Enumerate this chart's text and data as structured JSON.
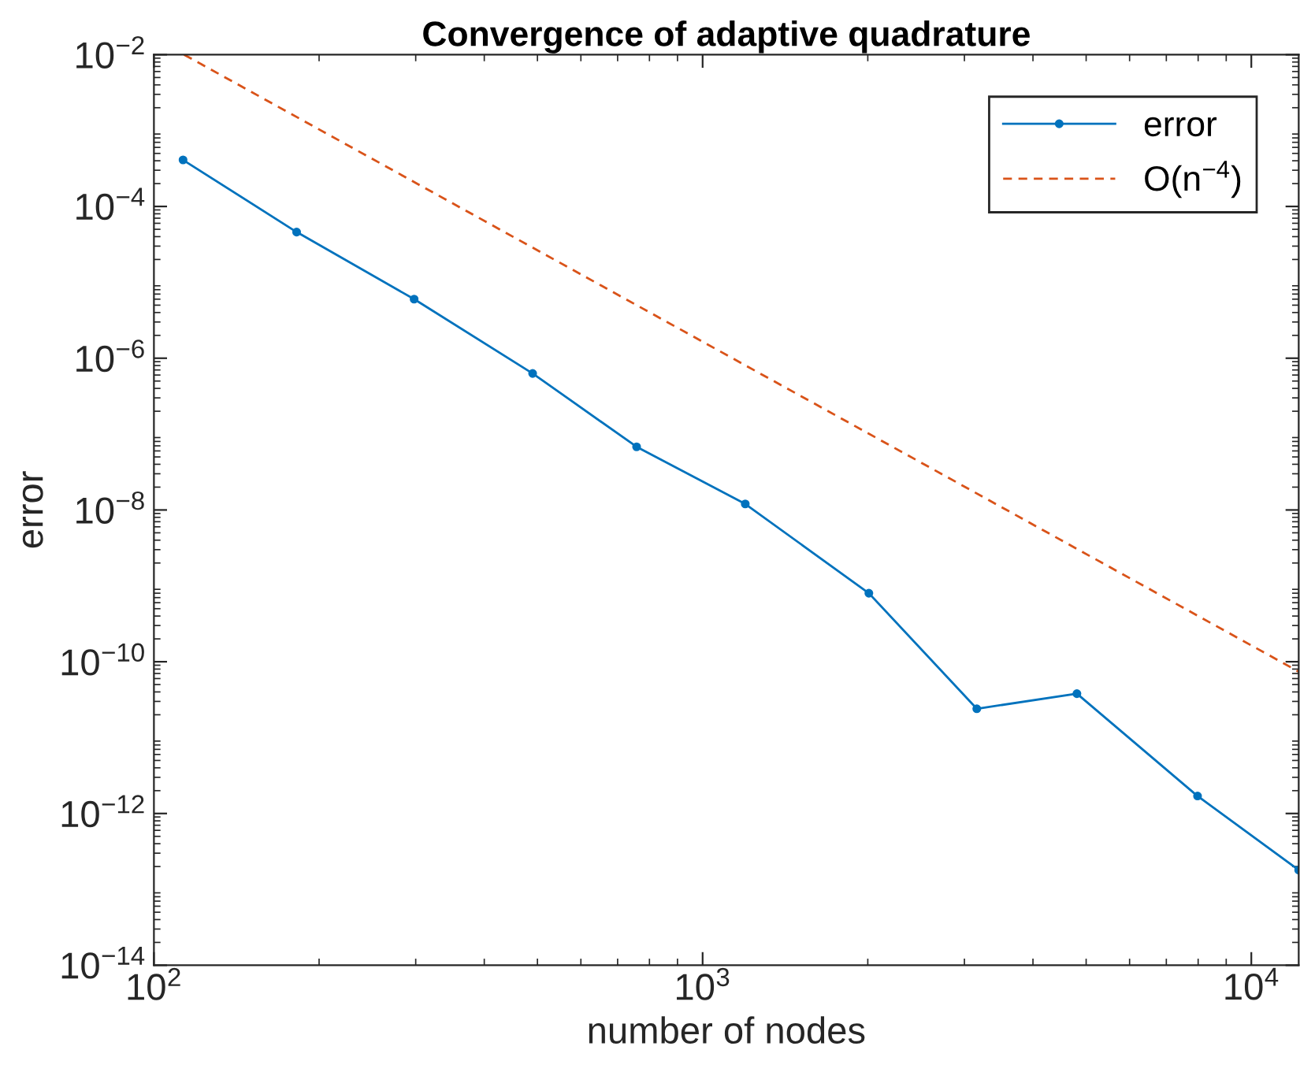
{
  "chart_data": {
    "type": "line",
    "title": "Convergence of adaptive quadrature",
    "xlabel": "number of nodes",
    "ylabel": "error",
    "log": "xy",
    "grid": false,
    "legend": "top right",
    "xlim": [
      100,
      12200
    ],
    "xticks": [
      {
        "value": 100,
        "label": "10$^{2}$"
      },
      {
        "value": 1000,
        "label": "10$^{3}$"
      },
      {
        "value": 10000,
        "label": "10$^{4}$"
      }
    ],
    "ylim": [
      1e-14,
      0.01
    ],
    "yticks": [
      {
        "value": 1e-14,
        "label": "10$^{−14}$"
      },
      {
        "value": 1e-12,
        "label": "10$^{−12}$"
      },
      {
        "value": 1e-10,
        "label": "10$^{−10}$"
      },
      {
        "value": 1e-08,
        "label": "10$^{−8}$"
      },
      {
        "value": 1e-06,
        "label": "10$^{−6}$"
      },
      {
        "value": 0.0001,
        "label": "10$^{−4}$"
      },
      {
        "value": 0.01,
        "label": "10$^{−2}$"
      }
    ],
    "series": [
      {
        "name": "error",
        "color": "#0072bd",
        "marker": "circle",
        "line_style": "solid",
        "x": [
          113,
          182,
          298,
          490,
          758,
          1196,
          2009,
          3160,
          4810,
          7980,
          12200
        ],
        "values": [
          0.00041,
          4.6e-05,
          6e-06,
          6.3e-07,
          6.8e-08,
          1.2e-08,
          8e-10,
          2.4e-11,
          3.8e-11,
          1.7e-12,
          1.8e-13
        ]
      },
      {
        "name": "O(n$^{−4}$)",
        "color": "#d95319",
        "marker": "none",
        "line_style": "dashed",
        "x": [
          113.5,
          12200
        ],
        "values": [
          0.01,
          7.4e-11
        ]
      }
    ]
  }
}
